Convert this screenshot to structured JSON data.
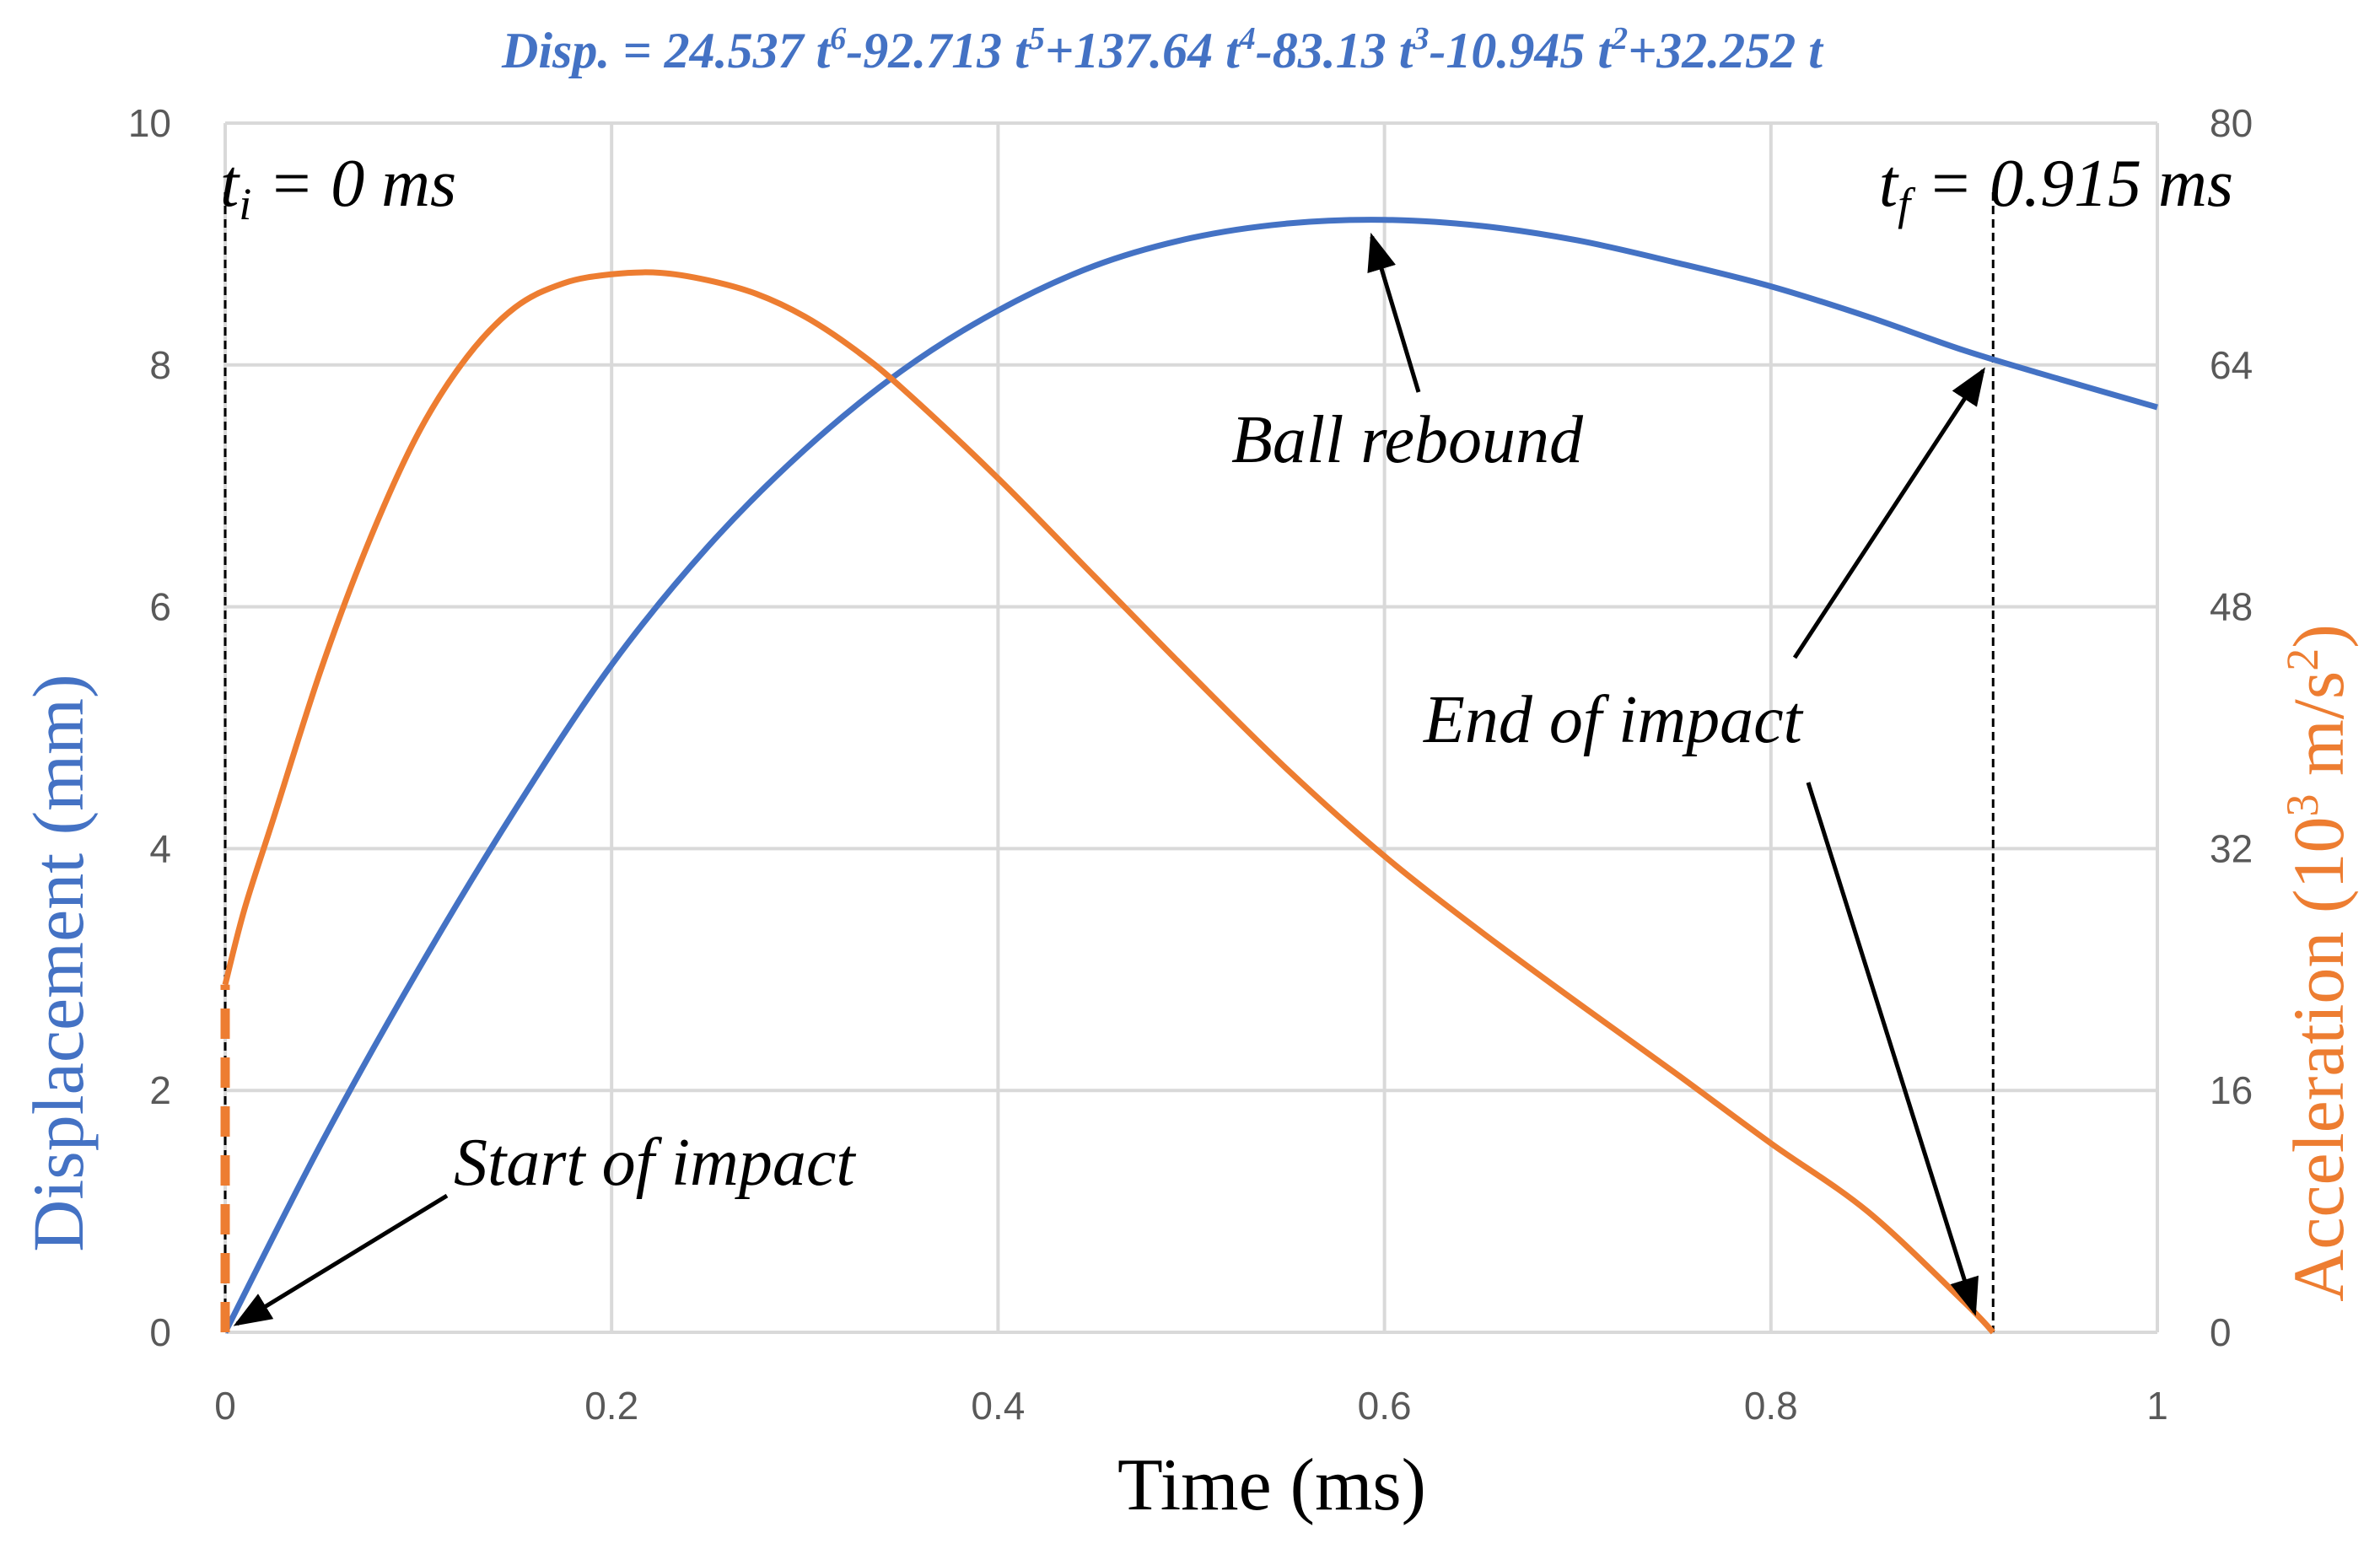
{
  "chart_data": {
    "type": "line",
    "equation": {
      "prefix": "Disp. = 24.537 t",
      "parts": [
        {
          "sup": "6",
          "text": "-92.713 t"
        },
        {
          "sup": "5",
          "text": "+137.64 t"
        },
        {
          "sup": "4",
          "text": "-83.13 t"
        },
        {
          "sup": "3",
          "text": "-10.945 t"
        },
        {
          "sup": "2",
          "text": "+32.252 t"
        }
      ]
    },
    "xlabel": "Time (ms)",
    "ylabel_left": "Displacement (mm)",
    "ylabel_right": {
      "main": "Acceleration (10",
      "sup1": "3",
      "mid": " m/s",
      "sup2": "2",
      "end": ")"
    },
    "xlim": [
      0,
      1
    ],
    "ylim_left": [
      0,
      10
    ],
    "ylim_right": [
      0,
      80
    ],
    "x_ticks": [
      "0",
      "0.2",
      "0.4",
      "0.6",
      "0.8",
      "1"
    ],
    "y_ticks_left": [
      "0",
      "2",
      "4",
      "6",
      "8",
      "10"
    ],
    "y_ticks_right": [
      "0",
      "16",
      "32",
      "48",
      "64",
      "80"
    ],
    "grid": true,
    "series": [
      {
        "name": "Displacement",
        "axis": "left",
        "color": "#4472C4",
        "style": "solid",
        "formula_coefficients": [
          24.537,
          -92.713,
          137.64,
          -83.13,
          -10.945,
          32.252,
          0
        ],
        "x": [
          0,
          0.05,
          0.1,
          0.15,
          0.2,
          0.25,
          0.3,
          0.35,
          0.4,
          0.45,
          0.5,
          0.55,
          0.6,
          0.65,
          0.7,
          0.75,
          0.8,
          0.85,
          0.9,
          0.95,
          1.0
        ],
        "y": [
          0,
          1.57,
          3.0,
          4.32,
          5.52,
          6.5,
          7.3,
          7.95,
          8.45,
          8.82,
          9.05,
          9.17,
          9.2,
          9.15,
          9.03,
          8.85,
          8.65,
          8.4,
          8.12,
          7.88,
          7.65
        ]
      },
      {
        "name": "Acceleration",
        "axis": "right",
        "color": "#ED7D31",
        "style": "solid",
        "x": [
          0,
          0.01,
          0.025,
          0.05,
          0.075,
          0.1,
          0.125,
          0.15,
          0.175,
          0.2,
          0.225,
          0.25,
          0.275,
          0.3,
          0.325,
          0.35,
          0.4,
          0.45,
          0.5,
          0.55,
          0.6,
          0.65,
          0.7,
          0.75,
          0.8,
          0.85,
          0.9,
          0.915
        ],
        "y": [
          23,
          28,
          34,
          44,
          52.5,
          59.5,
          64.5,
          67.8,
          69.4,
          70,
          70.1,
          69.6,
          68.7,
          67.2,
          65.1,
          62.5,
          56.5,
          50,
          43.5,
          37.2,
          31.5,
          26.5,
          21.8,
          17.2,
          12.5,
          8,
          2,
          0
        ]
      },
      {
        "name": "Acceleration (pre-impact jump)",
        "axis": "right",
        "color": "#ED7D31",
        "style": "dashed",
        "x": [
          0,
          0
        ],
        "y": [
          0,
          23
        ]
      }
    ],
    "markers": [
      {
        "name": "impact-start-line",
        "x": 0,
        "label_main": "t",
        "label_sub": "i",
        "label_rest": " = 0 ms"
      },
      {
        "name": "impact-end-line",
        "x": 0.915,
        "label_main": "t",
        "label_sub": "f",
        "label_rest": " = 0.915 ms"
      }
    ],
    "annotations": [
      {
        "name": "start-of-impact",
        "text": "Start of impact",
        "point_to": [
          0,
          0
        ],
        "axis": "left"
      },
      {
        "name": "ball-rebound",
        "text": "Ball rebound",
        "point_to": [
          0.59,
          9.2
        ],
        "axis": "left"
      },
      {
        "name": "end-of-impact",
        "text": "End of impact",
        "point_to": [
          [
            0.915,
            8.05
          ],
          [
            0.915,
            0
          ]
        ],
        "axis": "left"
      }
    ]
  }
}
